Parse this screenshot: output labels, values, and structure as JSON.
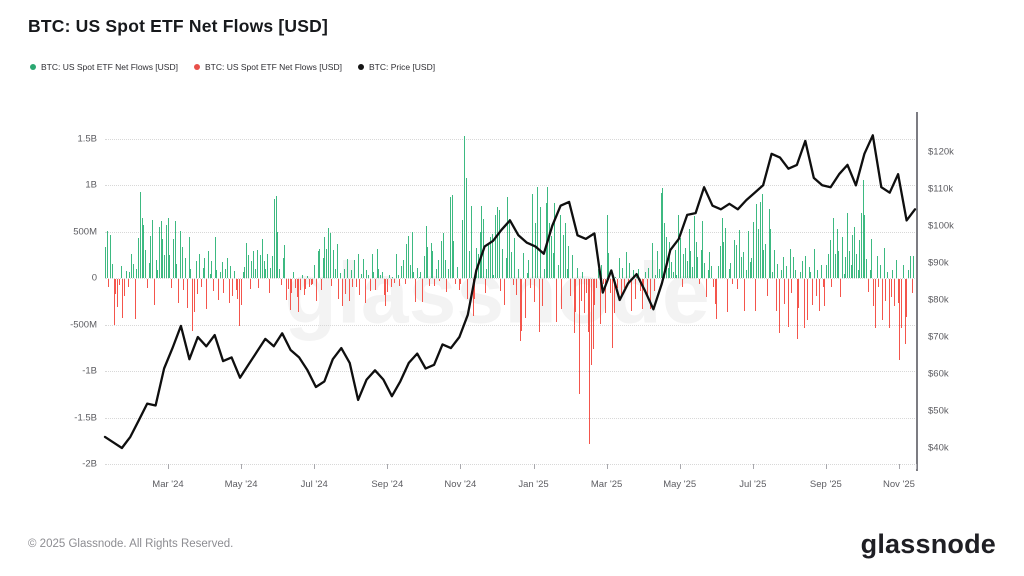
{
  "header": {
    "title": "BTC: US Spot ETF Net Flows [USD]"
  },
  "legend": {
    "items": [
      {
        "label": "BTC: US Spot ETF Net Flows [USD]",
        "color": "#2aa771",
        "marker": "dot-icon"
      },
      {
        "label": "BTC: US Spot ETF Net Flows [USD]",
        "color": "#e8504a",
        "marker": "dot-icon"
      },
      {
        "label": "BTC: Price [USD]",
        "color": "#141414",
        "marker": "dot-icon"
      }
    ]
  },
  "watermark": "glassnode",
  "footer": {
    "copyright": "© 2025 Glassnode. All Rights Reserved.",
    "logo_text": "glassnode"
  },
  "chart_data": {
    "type": "bar",
    "title": "BTC: US Spot ETF Net Flows [USD]",
    "grid": "horizontal-dotted",
    "legend_position": "top-left",
    "x_tick_labels": [
      "Mar '24",
      "May '24",
      "Jul '24",
      "Sep '24",
      "Nov '24",
      "Jan '25",
      "Mar '25",
      "May '25",
      "Jul '25",
      "Sep '25",
      "Nov '25"
    ],
    "x_range": "Jan 2024 - Nov 2025",
    "y_left": {
      "tick_labels": [
        "1.5B",
        "1B",
        "500M",
        "0",
        "-500M",
        "-1B",
        "-1.5B",
        "-2B"
      ],
      "tick_values_musd": [
        1500,
        1000,
        500,
        0,
        -500,
        -1000,
        -1500,
        -2000
      ],
      "unit": "USD net flow"
    },
    "y_right": {
      "tick_labels": [
        "$120k",
        "$110k",
        "$100k",
        "$90k",
        "$80k",
        "$70k",
        "$60k",
        "$50k",
        "$40k"
      ],
      "tick_values_kusd": [
        120,
        110,
        100,
        90,
        80,
        70,
        60,
        50,
        40
      ],
      "unit": "BTC price USD"
    },
    "series": [
      {
        "name": "BTC: US Spot ETF Net Flows [USD]",
        "type": "bar",
        "unit": "million USD (daily, estimated from pixels)",
        "positive_color": "#3db981",
        "negative_color": "#f4554c",
        "values_musd": [
          330,
          505,
          -88,
          460,
          151,
          -498,
          -160,
          -302,
          -60,
          125,
          -420,
          -180,
          78,
          -90,
          60,
          255,
          150,
          -430,
          92,
          425,
          930,
          648,
          575,
          305,
          -95,
          161,
          455,
          627,
          -283,
          198,
          88,
          545,
          612,
          424,
          251,
          566,
          641,
          250,
          -94,
          420,
          610,
          154,
          -262,
          505,
          330,
          -120,
          216,
          -310,
          440,
          95,
          -564,
          -352,
          183,
          -160,
          262,
          -88,
          111,
          215,
          -321,
          286,
          40,
          183,
          -125,
          438,
          90,
          -223,
          64,
          170,
          -148,
          95,
          218,
          -255,
          124,
          -180,
          77,
          -120,
          -218,
          -502,
          -284,
          63,
          116,
          378,
          251,
          -110,
          188,
          290,
          102,
          305,
          -95,
          251,
          420,
          188,
          93,
          257,
          -154,
          108,
          235,
          850,
          887,
          490,
          102,
          -65,
          217,
          350,
          -226,
          -106,
          -330,
          -152,
          64,
          -92,
          -190,
          -350,
          -120,
          31,
          -174,
          -106,
          21,
          -85,
          -60,
          -49,
          143,
          -238,
          295,
          310,
          -120,
          216,
          438,
          310,
          533,
          485,
          -78,
          296,
          92,
          361,
          -210,
          51,
          -285,
          92,
          -158,
          202,
          -237,
          90,
          -81,
          194,
          -90,
          254,
          -168,
          39,
          202,
          -256,
          88,
          28,
          -127,
          253,
          65,
          -122,
          310,
          94,
          28,
          65,
          -175,
          -288,
          -138,
          28,
          -91,
          12,
          -44,
          263,
          28,
          -79,
          125,
          194,
          -52,
          365,
          447,
          135,
          494,
          61,
          -242,
          105,
          12,
          61,
          -243,
          235,
          556,
          328,
          -80,
          371,
          294,
          -79,
          98,
          192,
          -18,
          402,
          479,
          198,
          -140,
          99,
          870,
          893,
          402,
          -55,
          116,
          -116,
          -55,
          622,
          1530,
          1080,
          -211,
          293,
          775,
          -400,
          -210,
          320,
          254,
          490,
          775,
          630,
          -148,
          93,
          356,
          440,
          478,
          31,
          676,
          760,
          734,
          -134,
          314,
          -277,
          210,
          870,
          630,
          275,
          -68,
          426,
          -171,
          94,
          -670,
          -560,
          274,
          -420,
          53,
          189,
          -102,
          908,
          -242,
          593,
          978,
          -570,
          761,
          -287,
          92,
          802,
          975,
          588,
          447,
          264,
          802,
          -457,
          136,
          679,
          -320,
          462,
          588,
          93,
          341,
          -186,
          251,
          -580,
          -360,
          107,
          -1240,
          -240,
          66,
          -364,
          -150,
          -571,
          -1770,
          -930,
          -750,
          -276,
          -94,
          94,
          -482,
          135,
          -57,
          -370,
          682,
          274,
          -152,
          -745,
          -370,
          13,
          -94,
          220,
          -186,
          105,
          -97,
          276,
          -59,
          165,
          -340,
          84,
          -220,
          13,
          94,
          -132,
          -326,
          -110,
          64,
          -172,
          107,
          -319,
          381,
          -127,
          36,
          292,
          98,
          912,
          970,
          591,
          442,
          108,
          385,
          172,
          64,
          298,
          36,
          674,
          425,
          -85,
          258,
          320,
          179,
          526,
          294,
          113,
          667,
          386,
          231,
          -56,
          303,
          608,
          163,
          -189,
          86,
          279,
          131,
          -91,
          -268,
          -430,
          128,
          348,
          650,
          386,
          540,
          -350,
          102,
          164,
          -56,
          412,
          350,
          -107,
          520,
          228,
          278,
          -342,
          83,
          501,
          172,
          217,
          601,
          -342,
          797,
          524,
          820,
          900,
          297,
          363,
          -178,
          742,
          523,
          61,
          297,
          -340,
          150,
          -580,
          91,
          226,
          -272,
          130,
          -515,
          312,
          -148,
          230,
          88,
          -650,
          -312,
          65,
          179,
          -523,
          233,
          -440,
          123,
          65,
          -276,
          312,
          -179,
          88,
          -347,
          145,
          -88,
          -292,
          135,
          263,
          410,
          -88,
          642,
          260,
          522,
          292,
          -190,
          441,
          46,
          222,
          700,
          292,
          135,
          466,
          553,
          263,
          88,
          410,
          702,
          1050,
          676,
          203,
          -145,
          88,
          419,
          -290,
          -530,
          234,
          -88,
          145,
          -440,
          320,
          -234,
          61,
          -530,
          -190,
          88,
          -290,
          190,
          -258,
          -870,
          -523,
          145,
          -700,
          -410,
          88,
          234,
          -150,
          240
        ]
      },
      {
        "name": "BTC: Price [USD]",
        "type": "line",
        "unit": "thousand USD (weekly, estimated from pixels)",
        "color": "#0f0f0f",
        "values_kusd": [
          43,
          41.5,
          40,
          43,
          47.5,
          52,
          51.5,
          61.5,
          67,
          73,
          64,
          70,
          67.5,
          70.5,
          63.5,
          64.5,
          59,
          62.5,
          66,
          69.5,
          67.5,
          71,
          66.5,
          64.5,
          61,
          56.5,
          58,
          64,
          67,
          63,
          53,
          58.5,
          61,
          58.5,
          54,
          58,
          63,
          65.5,
          61.5,
          62.5,
          68,
          67,
          70,
          76,
          88,
          94.5,
          96,
          99,
          101.5,
          97.5,
          95.5,
          94.5,
          92.5,
          100,
          105.5,
          106.5,
          97.5,
          96.5,
          98,
          82,
          88,
          80,
          84.5,
          87,
          82.5,
          77.5,
          84.5,
          93.5,
          96.5,
          103,
          103.5,
          110.5,
          105.5,
          104.5,
          106,
          104.5,
          107,
          109,
          111,
          119.5,
          118.5,
          115.5,
          116.5,
          123,
          113,
          111,
          110.5,
          114,
          116.5,
          111,
          119.5,
          124.5,
          110.5,
          109,
          114,
          101.5,
          104.5
        ]
      }
    ]
  }
}
